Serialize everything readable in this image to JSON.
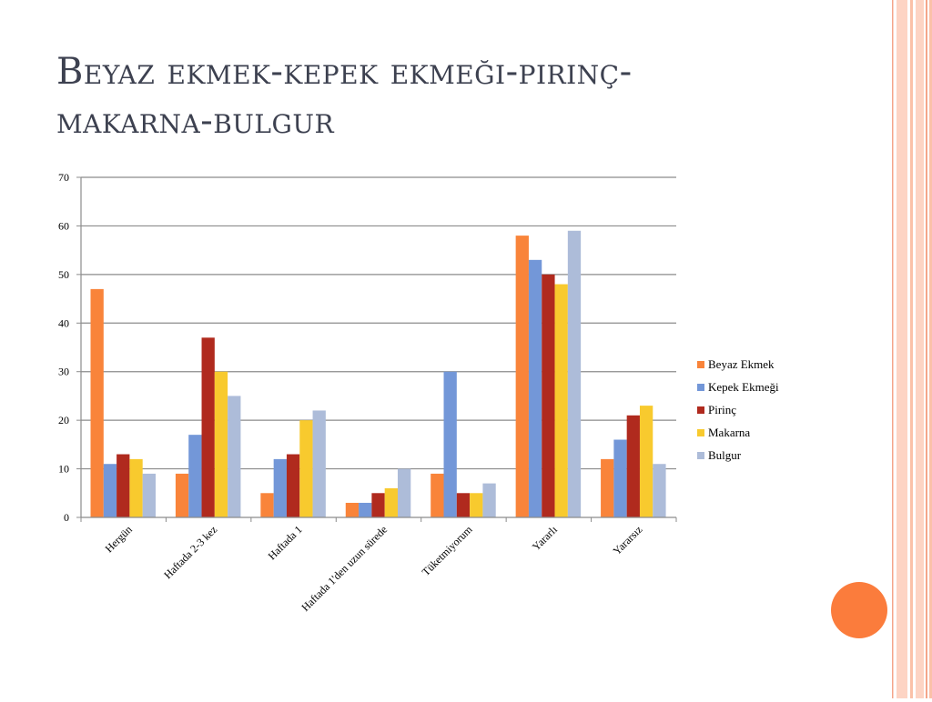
{
  "slide": {
    "title": "Beyaz ekmek-kepek ekmeği-pirinç-makarna-bulgur"
  },
  "colors": {
    "title": "#3d4150",
    "accent_circle": "#fb7c3c",
    "stripe_light": "#fdd4c4",
    "stripe_mid": "#fbc1a8",
    "stripe_line": "#f4a58a"
  },
  "chart_data": {
    "type": "bar",
    "categories": [
      "Hergün",
      "Haftada 2-3 kez",
      "Haftada 1",
      "Haftada 1'den uzun sürede",
      "Tüketmiyorum",
      "Yararlı",
      "Yararsız"
    ],
    "series": [
      {
        "name": "Beyaz Ekmek",
        "color": "#f9843a",
        "values": [
          47,
          9,
          5,
          3,
          9,
          58,
          12
        ]
      },
      {
        "name": "Kepek Ekmeği",
        "color": "#7397d8",
        "values": [
          11,
          17,
          12,
          3,
          30,
          53,
          16
        ]
      },
      {
        "name": "Pirinç",
        "color": "#b02a1e",
        "values": [
          13,
          37,
          13,
          5,
          5,
          50,
          21
        ]
      },
      {
        "name": "Makarna",
        "color": "#f8ca2e",
        "values": [
          12,
          30,
          20,
          6,
          5,
          48,
          23
        ]
      },
      {
        "name": "Bulgur",
        "color": "#adbcd9",
        "values": [
          9,
          25,
          22,
          10,
          7,
          59,
          11
        ]
      }
    ],
    "ylim": [
      0,
      70
    ],
    "yticks": [
      0,
      10,
      20,
      30,
      40,
      50,
      60,
      70
    ],
    "grid": true,
    "legend": "right"
  }
}
